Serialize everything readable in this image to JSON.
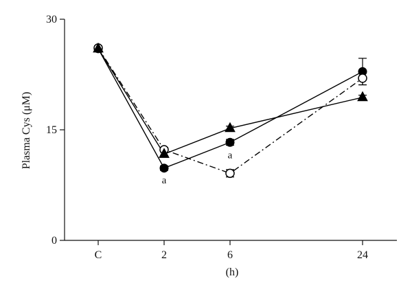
{
  "chart_data": {
    "type": "line",
    "x": [
      "C",
      "2",
      "6",
      "24"
    ],
    "x_positions": [
      0,
      2,
      6,
      24
    ],
    "xlabel": "(h)",
    "ylabel": "Plasma Cys (μM)",
    "ylim": [
      0,
      30
    ],
    "yticks": [
      0,
      15,
      30
    ],
    "grid": false,
    "legend": null,
    "series": [
      {
        "marker": "filled-circle",
        "line_style": "solid",
        "values": [
          26.0,
          9.8,
          13.3,
          22.9
        ],
        "error": [
          0.3,
          0.3,
          0.4,
          1.8
        ]
      },
      {
        "marker": "open-circle",
        "line_style": "dash-dot",
        "values": [
          26.1,
          12.3,
          9.1,
          22.0
        ],
        "error": [
          0.3,
          0.3,
          0.5,
          0.9
        ]
      },
      {
        "marker": "filled-triangle",
        "line_style": "solid",
        "values": [
          26.0,
          11.7,
          15.2,
          19.4
        ],
        "error": [
          0.3,
          0.3,
          0.3,
          0.3
        ]
      }
    ],
    "annotations": [
      {
        "text": "a",
        "x": "2",
        "y": 8.2
      },
      {
        "text": "a",
        "x": "6",
        "y": 11.6
      }
    ],
    "colors": {
      "line": "#000000",
      "marker_fill": "#000000",
      "open_fill": "#ffffff"
    }
  }
}
